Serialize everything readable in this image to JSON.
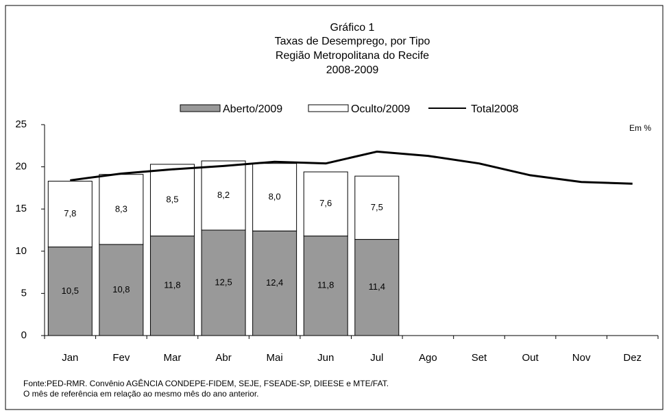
{
  "chart_data": {
    "type": "bar-line",
    "title": [
      "Gráfico 1",
      "Taxas de Desemprego, por Tipo",
      "Região Metropolitana do Recife",
      "2008-2009"
    ],
    "unit_note": "Em %",
    "categories": [
      "Jan",
      "Fev",
      "Mar",
      "Abr",
      "Mai",
      "Jun",
      "Jul",
      "Ago",
      "Set",
      "Out",
      "Nov",
      "Dez"
    ],
    "series": [
      {
        "name": "Aberto/2009",
        "kind": "bar",
        "color": "#999999",
        "values": [
          10.5,
          10.8,
          11.8,
          12.5,
          12.4,
          11.8,
          11.4,
          null,
          null,
          null,
          null,
          null
        ],
        "value_labels": [
          "10,5",
          "10,8",
          "11,8",
          "12,5",
          "12,4",
          "11,8",
          "11,4",
          null,
          null,
          null,
          null,
          null
        ]
      },
      {
        "name": "Oculto/2009",
        "kind": "bar",
        "color": "#ffffff",
        "values": [
          7.8,
          8.3,
          8.5,
          8.2,
          8.0,
          7.6,
          7.5,
          null,
          null,
          null,
          null,
          null
        ],
        "value_labels": [
          "7,8",
          "8,3",
          "8,5",
          "8,2",
          "8,0",
          "7,6",
          "7,5",
          null,
          null,
          null,
          null,
          null
        ]
      },
      {
        "name": "Total2008",
        "kind": "line",
        "color": "#000000",
        "values": [
          18.4,
          19.2,
          19.7,
          20.1,
          20.6,
          20.4,
          21.8,
          21.3,
          20.4,
          19.0,
          18.2,
          18.0
        ]
      }
    ],
    "ylim": [
      0,
      25
    ],
    "yticks": [
      0,
      5,
      10,
      15,
      20,
      25
    ],
    "notes": [
      "Fonte:PED-RMR. Convênio AGÊNCIA CONDEPE-FIDEM, SEJE, FSEADE-SP, DIEESE e MTE/FAT.",
      "O mês de referência em relação ao mesmo mês do ano anterior."
    ]
  }
}
